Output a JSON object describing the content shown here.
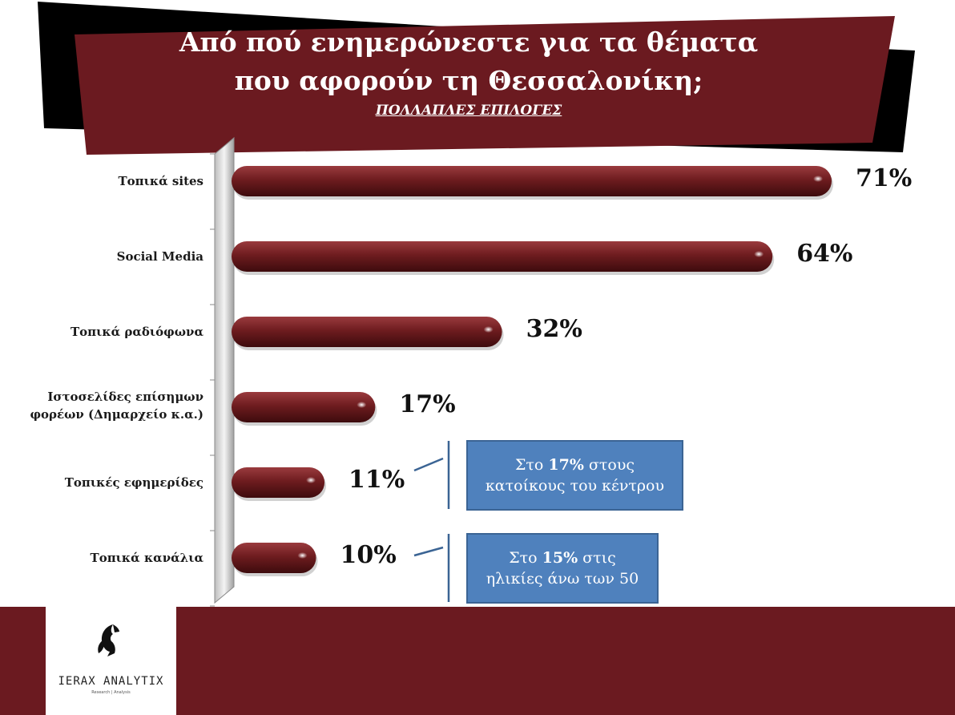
{
  "title": {
    "line1": "Από πού ενημερώνεστε για τα θέματα",
    "line2": "που αφορούν τη Θεσσαλονίκη;",
    "subtitle": "ΠΟΛΛΑΠΛΕΣ ΕΠΙΛΟΓΕΣ"
  },
  "colors": {
    "brand_maroon": "#6b1a20",
    "bar_fill": "#6e1c1f",
    "callout_blue": "#4f81bd",
    "shadow_black": "#000000"
  },
  "chart_data": {
    "type": "bar",
    "orientation": "horizontal",
    "categories": [
      "Τοπικά sites",
      "Social Media",
      "Τοπικά ραδιόφωνα",
      "Ιστοσελίδες επίσημων φορέων (Δημαρχείο κ.α.)",
      "Τοπικές εφημερίδες",
      "Τοπικά κανάλια"
    ],
    "category_lines": [
      [
        "Τοπικά sites"
      ],
      [
        "Social Media"
      ],
      [
        "Τοπικά ραδιόφωνα"
      ],
      [
        "Ιστοσελίδες επίσημων",
        "φορέων (Δημαρχείο κ.α.)"
      ],
      [
        "Τοπικές εφημερίδες"
      ],
      [
        "Τοπικά κανάλια"
      ]
    ],
    "values": [
      71,
      64,
      32,
      17,
      11,
      10
    ],
    "value_labels": [
      "71%",
      "64%",
      "32%",
      "17%",
      "11%",
      "10%"
    ],
    "xlim": [
      0,
      100
    ],
    "grid": false,
    "legend": "none"
  },
  "callouts": [
    {
      "prefix": "Στο ",
      "highlight": "17%",
      "suffix": " στους",
      "line2": "κατοίκους του κέντρου"
    },
    {
      "prefix": "Στο ",
      "highlight": "15%",
      "suffix": " στις",
      "line2": "ηλικίες άνω των 50"
    }
  ],
  "logo": {
    "name": "IERAX ANALYTIX",
    "tagline": "Research | Analysis",
    "icon": "hawk-head-icon"
  }
}
